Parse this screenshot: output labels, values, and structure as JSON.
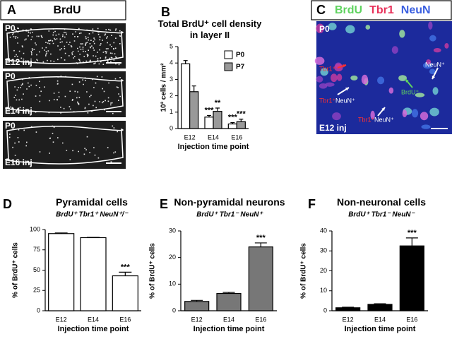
{
  "panels": {
    "a": {
      "letter": "A",
      "title": "BrdU",
      "images": [
        {
          "age": "P0",
          "injection": "E12 inj"
        },
        {
          "age": "P0",
          "injection": "E14 inj"
        },
        {
          "age": "P0",
          "injection": "E16 inj"
        }
      ]
    },
    "c": {
      "letter": "C",
      "markers": [
        {
          "text": "BrdU",
          "color": "#5fd35f"
        },
        {
          "text": "Tbr1",
          "color": "#e8315a"
        },
        {
          "text": "NeuN",
          "color": "#3a5fe0"
        }
      ],
      "age": "P0",
      "injection": "E12 inj",
      "cell_labels": [
        {
          "text": "NeuN⁺",
          "color": "#ffffff"
        },
        {
          "text": "Tbr1⁺",
          "color": "#ff3030"
        },
        {
          "text": "BrdU⁺",
          "color": "#5fd35f"
        },
        {
          "text": "Tbr1⁺",
          "color": "#ff3030"
        },
        {
          "text": "NeuN⁺",
          "color": "#ffffff"
        },
        {
          "text": "Tbr1⁺",
          "color": "#ff3030"
        },
        {
          "text": "NeuN⁺",
          "color": "#ffffff"
        }
      ]
    }
  },
  "chart_data": [
    {
      "type": "bar",
      "letter": "B",
      "title": "Total BrdU⁺ cell density in layer II",
      "ylabel": "10³ cells / mm²",
      "xlabel": "Injection time point",
      "categories": [
        "E12",
        "E14",
        "E16"
      ],
      "series": [
        {
          "name": "P0",
          "color": "#ffffff",
          "values": [
            3.95,
            0.7,
            0.28
          ],
          "errors": [
            0.2,
            0.1,
            0.08
          ],
          "significance": [
            null,
            "***",
            "***"
          ]
        },
        {
          "name": "P7",
          "color": "#999999",
          "values": [
            2.25,
            1.05,
            0.42
          ],
          "errors": [
            0.35,
            0.2,
            0.15
          ],
          "significance": [
            null,
            "**",
            "***"
          ]
        }
      ],
      "ylim": [
        0,
        5
      ],
      "yticks": [
        0,
        1,
        2,
        3,
        4,
        5
      ],
      "legend": "upper right"
    },
    {
      "type": "bar",
      "letter": "D",
      "title": "Pyramidal cells",
      "subtitle": "BrdU⁺ Tbr1⁺ NeuN⁺/⁻",
      "ylabel": "% of BrdU⁺ cells",
      "xlabel": "Injection time point",
      "categories": [
        "E12",
        "E14",
        "E16"
      ],
      "series": [
        {
          "color": "#ffffff",
          "values": [
            95,
            90,
            43
          ],
          "errors": [
            0.8,
            0.3,
            4.5
          ],
          "significance": [
            null,
            null,
            "***"
          ]
        }
      ],
      "ylim": [
        0,
        100
      ],
      "yticks": [
        0,
        25,
        50,
        75,
        100
      ]
    },
    {
      "type": "bar",
      "letter": "E",
      "title": "Non-pyramidal neurons",
      "subtitle": "BrdU⁺ Tbr1⁻ NeuN⁺",
      "ylabel": "% of BrdU⁺ cells",
      "xlabel": "Injection time point",
      "categories": [
        "E12",
        "E14",
        "E16"
      ],
      "series": [
        {
          "color": "#777777",
          "values": [
            3.5,
            6.5,
            24
          ],
          "errors": [
            0.4,
            0.4,
            1.5
          ],
          "significance": [
            null,
            null,
            "***"
          ]
        }
      ],
      "ylim": [
        0,
        30
      ],
      "yticks": [
        0,
        10,
        20,
        30
      ]
    },
    {
      "type": "bar",
      "letter": "F",
      "title": "Non-neuronal cells",
      "subtitle": "BrdU⁺ Tbr1⁻ NeuN⁻",
      "ylabel": "% of BrdU⁺ cells",
      "xlabel": "Injection time point",
      "categories": [
        "E12",
        "E14",
        "E16"
      ],
      "series": [
        {
          "color": "#000000",
          "values": [
            1.5,
            3.2,
            32.5
          ],
          "errors": [
            0.3,
            0.3,
            4
          ],
          "significance": [
            null,
            null,
            "***"
          ]
        }
      ],
      "ylim": [
        0,
        40
      ],
      "yticks": [
        0,
        10,
        20,
        30,
        40
      ]
    }
  ]
}
